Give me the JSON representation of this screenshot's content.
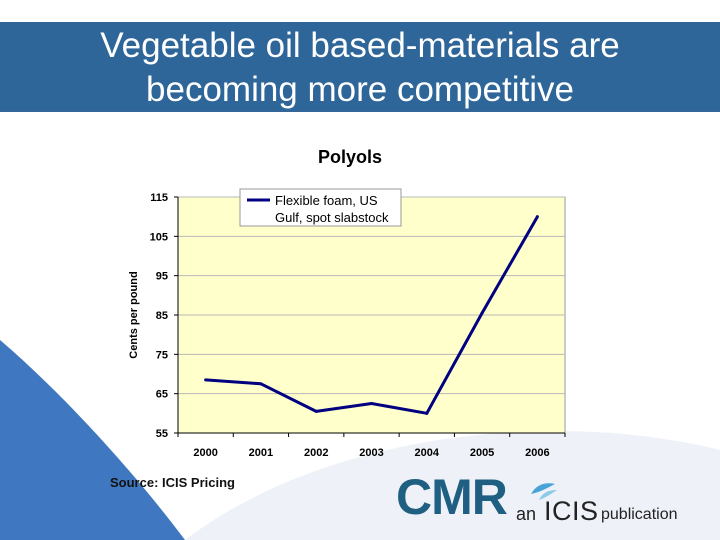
{
  "slide": {
    "title_line1": "Vegetable oil based-materials are",
    "title_line2": "becoming more competitive",
    "source": "Source: ICIS Pricing"
  },
  "logo": {
    "cmr": "CMR",
    "an": "an",
    "icis": "ICIS",
    "publication": "publication"
  },
  "colors": {
    "title_band": "#336699",
    "plot_bg": "#ffffcc",
    "line": "#000080",
    "swoosh": "#3f78c0"
  },
  "chart_data": {
    "type": "line",
    "title": "Polyols",
    "xlabel": "",
    "ylabel": "Cents per pound",
    "categories": [
      "2000",
      "2001",
      "2002",
      "2003",
      "2004",
      "2005",
      "2006"
    ],
    "y_ticks": [
      "55",
      "65",
      "75",
      "85",
      "95",
      "105",
      "115"
    ],
    "ylim": [
      55,
      115
    ],
    "grid": true,
    "legend_position": "top-left",
    "series": [
      {
        "name": "Flexible foam, US Gulf, spot slabstock",
        "legend_line1": "Flexible foam, US",
        "legend_line2": "Gulf, spot slabstock",
        "values": [
          68.5,
          67.5,
          60.5,
          62.5,
          60,
          85.5,
          110
        ]
      }
    ]
  }
}
